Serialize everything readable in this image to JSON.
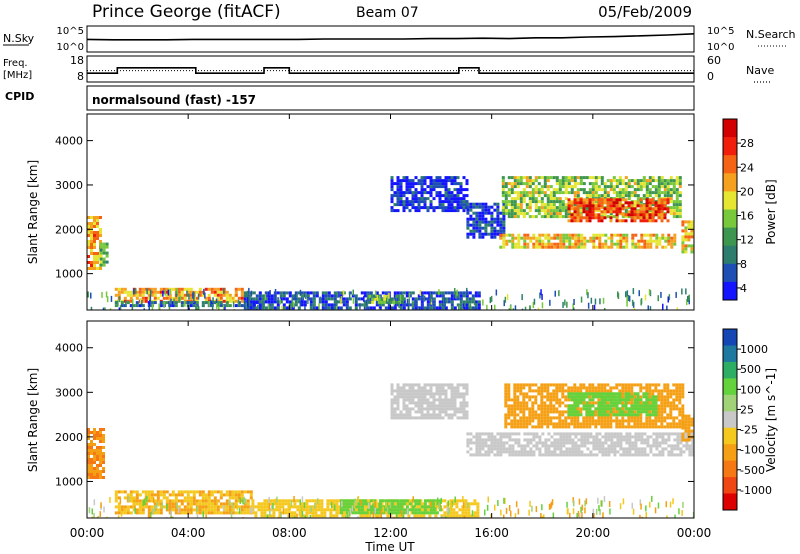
{
  "header": {
    "station": "Prince George (fitACF)",
    "beam": "Beam 07",
    "date": "05/Feb/2009"
  },
  "side_labels": {
    "nsky": "N.Sky",
    "freq_line1": "Freq.",
    "freq_line2": "[MHz]",
    "cpid": "CPID",
    "nsearch": "N.Search",
    "nave": "Nave"
  },
  "cpid_text": "normalsound (fast) -157",
  "chart_data": [
    {
      "type": "line",
      "name": "noise",
      "left_ticks": [
        "10^5",
        "10^0"
      ],
      "right_ticks": [
        "10^5",
        "10^0"
      ],
      "series": [
        {
          "values": [
            2.4,
            2.3,
            2.3,
            2.3,
            2.4,
            2.4,
            2.4,
            2.4,
            2.4,
            2.5,
            2.5,
            2.5,
            2.5,
            2.6,
            2.6,
            2.7,
            2.6,
            2.8,
            2.8,
            3.0,
            3.1,
            3.3,
            3.5,
            3.8
          ]
        }
      ]
    },
    {
      "type": "line",
      "name": "frequency",
      "left_ticks": [
        18,
        8
      ],
      "right_ticks": [
        60,
        0
      ],
      "x": [
        0,
        1.2,
        1.2,
        4.3,
        4.3,
        7.0,
        7.0,
        8.0,
        8.0,
        14.7,
        14.7,
        15.5,
        15.5,
        24
      ],
      "freq_mhz": [
        10.9,
        10.9,
        13.6,
        13.6,
        10.9,
        10.9,
        13.6,
        13.6,
        10.9,
        10.9,
        13.6,
        13.6,
        10.9,
        10.9
      ],
      "nave_reference": 25
    },
    {
      "type": "heatmap",
      "name": "power",
      "ylabel": "Slant Range [km]",
      "yticks": [
        1000,
        2000,
        3000,
        4000
      ],
      "ylim": [
        180,
        4600
      ],
      "xlim": [
        0,
        24
      ],
      "colorbar_label": "Power [dB]",
      "colorbar_ticks": [
        4,
        8,
        12,
        16,
        20,
        24,
        28
      ],
      "colors": [
        "#1414ff",
        "#1e4fb4",
        "#2d7d6e",
        "#3c9650",
        "#78c83c",
        "#e6e632",
        "#f5a01e",
        "#f56414",
        "#f01e0a",
        "#d20000"
      ],
      "regions": [
        {
          "x": [
            0.0,
            0.5
          ],
          "y": [
            1100,
            2300
          ],
          "v": 22
        },
        {
          "x": [
            0.5,
            0.75
          ],
          "y": [
            1200,
            1700
          ],
          "v": 14
        },
        {
          "x": [
            1.1,
            6.2
          ],
          "y": [
            380,
            680
          ],
          "v": 22
        },
        {
          "x": [
            1.1,
            7.0
          ],
          "y": [
            260,
            380
          ],
          "v": 8
        },
        {
          "x": [
            6.2,
            15.5
          ],
          "y": [
            260,
            600
          ],
          "v": 6
        },
        {
          "x": [
            11.0,
            12.5
          ],
          "y": [
            330,
            520
          ],
          "v": 14
        },
        {
          "x": [
            12.0,
            15.0
          ],
          "y": [
            2400,
            3200
          ],
          "v": 4
        },
        {
          "x": [
            15.0,
            16.5
          ],
          "y": [
            1800,
            2600
          ],
          "v": 5
        },
        {
          "x": [
            16.3,
            23.2
          ],
          "y": [
            1600,
            1900
          ],
          "v": 20
        },
        {
          "x": [
            16.4,
            23.5
          ],
          "y": [
            2300,
            3200
          ],
          "v": 16
        },
        {
          "x": [
            19.0,
            23.0
          ],
          "y": [
            2200,
            2700
          ],
          "v": 26
        },
        {
          "x": [
            23.5,
            24
          ],
          "y": [
            1500,
            2200
          ],
          "v": 20
        }
      ]
    },
    {
      "type": "heatmap",
      "name": "velocity",
      "ylabel": "Slant Range [km]",
      "yticks": [
        1000,
        2000,
        3000,
        4000
      ],
      "ylim": [
        180,
        4600
      ],
      "xlim": [
        0,
        24
      ],
      "xticks": [
        "00:00",
        "04:00",
        "08:00",
        "12:00",
        "16:00",
        "20:00",
        "00:00"
      ],
      "xlabel": "Time UT",
      "colorbar_label": "Velocity [m s^-1]",
      "colorbar_ticks": [
        1000,
        500,
        100,
        25,
        -25,
        -100,
        -500,
        -1000
      ],
      "colors": [
        "#1446b4",
        "#1e78a0",
        "#2dae64",
        "#64d23c",
        "#a0d278",
        "#c8c8c8",
        "#f5c81e",
        "#f5a014",
        "#f57814",
        "#f04614",
        "#dc0000"
      ],
      "regions": [
        {
          "x": [
            0.0,
            0.6
          ],
          "y": [
            1100,
            2200
          ],
          "v": -500
        },
        {
          "x": [
            1.1,
            6.5
          ],
          "y": [
            300,
            800
          ],
          "v": -100
        },
        {
          "x": [
            6.5,
            15.5
          ],
          "y": [
            250,
            600
          ],
          "v": -30
        },
        {
          "x": [
            10.0,
            14.0
          ],
          "y": [
            300,
            600
          ],
          "v": 150
        },
        {
          "x": [
            12.0,
            15.0
          ],
          "y": [
            2400,
            3200
          ],
          "v": 0
        },
        {
          "x": [
            15.0,
            24.0
          ],
          "y": [
            1600,
            2100
          ],
          "v": 0
        },
        {
          "x": [
            16.5,
            23.5
          ],
          "y": [
            2200,
            3200
          ],
          "v": -300
        },
        {
          "x": [
            19.0,
            22.5
          ],
          "y": [
            2500,
            3000
          ],
          "v": 300
        },
        {
          "x": [
            23.5,
            24.0
          ],
          "y": [
            1900,
            2500
          ],
          "v": -200
        }
      ]
    }
  ]
}
